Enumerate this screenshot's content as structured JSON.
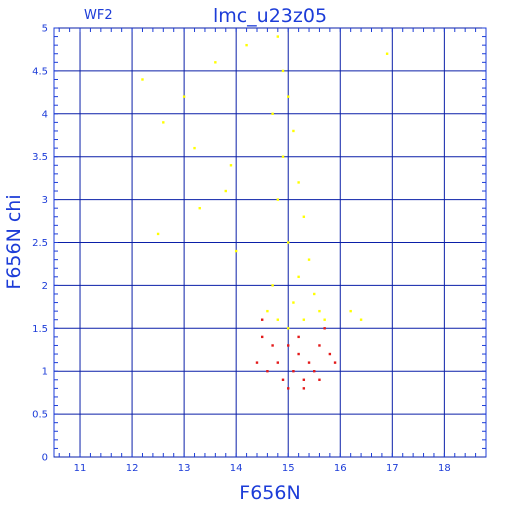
{
  "chart_data": {
    "type": "scatter",
    "title": "lmc_u23z05",
    "annotation": "WF2",
    "xlabel": "F656N",
    "ylabel": "F656N chi",
    "xlim": [
      10.5,
      18.8
    ],
    "ylim": [
      0,
      5
    ],
    "x_ticks": [
      11,
      12,
      13,
      14,
      15,
      16,
      17,
      18
    ],
    "y_ticks": [
      0,
      0.5,
      1,
      1.5,
      2,
      2.5,
      3,
      3.5,
      4,
      4.5,
      5
    ],
    "grid": true,
    "colors": {
      "axis": "#1c3cd8",
      "grid": "#0a1fa8"
    },
    "series": [
      {
        "color": "#ffff00",
        "description_points": "dense band of sources, chi rising with magnitude",
        "points": [
          [
            14.8,
            4.9
          ],
          [
            14.9,
            4.5
          ],
          [
            15.0,
            4.2
          ],
          [
            14.7,
            4.0
          ],
          [
            15.1,
            3.8
          ],
          [
            14.9,
            3.5
          ],
          [
            15.2,
            3.2
          ],
          [
            14.8,
            3.0
          ],
          [
            15.3,
            2.8
          ],
          [
            15.0,
            2.5
          ],
          [
            15.4,
            2.3
          ],
          [
            15.2,
            2.1
          ],
          [
            14.7,
            2.0
          ],
          [
            15.5,
            1.9
          ],
          [
            15.1,
            1.8
          ],
          [
            14.6,
            1.7
          ],
          [
            15.6,
            1.7
          ],
          [
            15.3,
            1.6
          ],
          [
            14.8,
            1.6
          ],
          [
            15.7,
            1.6
          ],
          [
            15.0,
            1.5
          ],
          [
            14.2,
            4.8
          ],
          [
            13.6,
            4.6
          ],
          [
            12.2,
            4.4
          ],
          [
            13.0,
            4.2
          ],
          [
            12.6,
            3.9
          ],
          [
            13.2,
            3.6
          ],
          [
            12.5,
            2.6
          ],
          [
            13.3,
            2.9
          ],
          [
            13.8,
            3.1
          ],
          [
            14.0,
            2.4
          ],
          [
            16.9,
            4.7
          ],
          [
            16.2,
            1.7
          ],
          [
            16.4,
            1.6
          ],
          [
            13.9,
            3.4
          ]
        ]
      },
      {
        "color": "#e31a1a",
        "description_points": "lower chi sources",
        "points": [
          [
            15.0,
            1.3
          ],
          [
            15.2,
            1.2
          ],
          [
            14.8,
            1.1
          ],
          [
            15.4,
            1.1
          ],
          [
            15.1,
            1.0
          ],
          [
            14.6,
            1.0
          ],
          [
            15.5,
            1.0
          ],
          [
            15.3,
            0.9
          ],
          [
            14.9,
            0.9
          ],
          [
            15.6,
            0.9
          ],
          [
            15.2,
            1.4
          ],
          [
            14.7,
            1.3
          ],
          [
            15.6,
            1.3
          ],
          [
            14.5,
            1.4
          ],
          [
            15.8,
            1.2
          ],
          [
            15.0,
            0.8
          ],
          [
            15.3,
            0.8
          ],
          [
            14.4,
            1.1
          ],
          [
            15.9,
            1.1
          ],
          [
            14.5,
            1.6
          ],
          [
            15.7,
            1.5
          ]
        ]
      }
    ]
  }
}
